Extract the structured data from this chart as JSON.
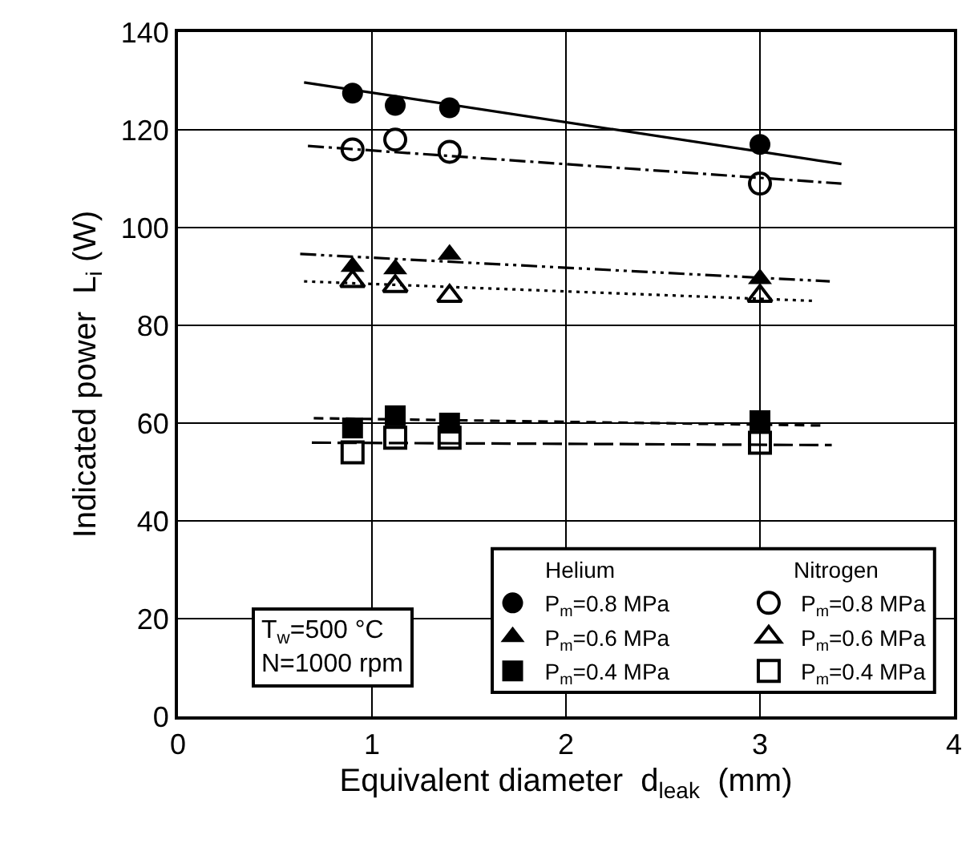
{
  "chart_data": {
    "type": "scatter",
    "xlabel": "Equivalent diameter  d$_{leak}$  (mm)",
    "ylabel": "Indicated power  L$_{i}$ (W)",
    "xlim": [
      0,
      4
    ],
    "xticks": [
      0,
      1,
      2,
      3,
      4
    ],
    "ylim": [
      0,
      140
    ],
    "yticks": [
      0,
      20,
      40,
      60,
      80,
      100,
      120,
      140
    ],
    "grid": true,
    "legend": "bottom right",
    "annotations": [
      "Helium",
      "Nitrogen",
      "T$_{w}$=500 °C",
      "N=1000 rpm"
    ],
    "series": [
      {
        "name": "P$_{m}$=0.8 MPa",
        "color": "#000000",
        "marker": "circle",
        "x": [
          0.9,
          1.12,
          1.4,
          3.0
        ],
        "values": [
          127.5,
          125,
          124.5,
          117
        ]
      },
      {
        "name": "P$_{m}$=0.6 MPa",
        "color": "#000000",
        "marker": "triangle",
        "x": [
          0.9,
          1.12,
          1.4,
          3.0
        ],
        "values": [
          92,
          91.5,
          94.5,
          89.5
        ]
      },
      {
        "name": "P$_{m}$=0.4 MPa",
        "color": "#000000",
        "marker": "square",
        "x": [
          0.9,
          1.12,
          1.4,
          3.0
        ],
        "values": [
          59,
          61.5,
          60,
          60.5
        ]
      },
      {
        "name": "P$_{m}$=0.8 MPa",
        "color": "#000000",
        "marker": "circle-open",
        "x": [
          0.9,
          1.12,
          1.4,
          3.0
        ],
        "values": [
          116,
          118,
          115.5,
          109
        ]
      },
      {
        "name": "P$_{m}$=0.6 MPa",
        "color": "#000000",
        "marker": "triangle-open",
        "x": [
          0.9,
          1.12,
          1.4,
          3.0
        ],
        "values": [
          89,
          88,
          86,
          86
        ]
      },
      {
        "name": "P$_{m}$=0.4 MPa",
        "color": "#000000",
        "marker": "square-open",
        "x": [
          0.9,
          1.12,
          1.4,
          3.0
        ],
        "values": [
          54,
          57,
          57,
          56
        ]
      },
      {
        "type": "line",
        "color": "#000000",
        "line_style": "solid",
        "x": [
          0.65,
          3.42
        ],
        "values": [
          129.7,
          113
        ]
      },
      {
        "type": "line",
        "color": "#000000",
        "line_style": "dashdot",
        "x": [
          0.67,
          3.42
        ],
        "values": [
          116.7,
          109
        ]
      },
      {
        "type": "line",
        "color": "#000000",
        "line_style": "dashdotdot",
        "x": [
          0.63,
          3.36
        ],
        "values": [
          94.6,
          89
        ]
      },
      {
        "type": "line",
        "color": "#000000",
        "line_style": "dotted",
        "x": [
          0.65,
          3.28
        ],
        "values": [
          89,
          85
        ]
      },
      {
        "type": "line",
        "color": "#000000",
        "line_style": "dashed",
        "x": [
          0.7,
          3.34
        ],
        "values": [
          61,
          59.5
        ]
      },
      {
        "type": "line",
        "color": "#000000",
        "line_style": "longdash",
        "x": [
          0.69,
          3.37
        ],
        "values": [
          56,
          55.5
        ]
      }
    ]
  }
}
